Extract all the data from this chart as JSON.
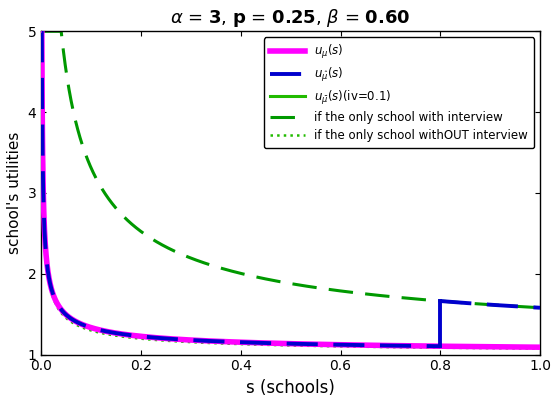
{
  "alpha": 3,
  "p": 0.25,
  "beta": 0.6,
  "iv": 0.1,
  "p_interview": 0.8,
  "xlabel": "s (schools)",
  "ylabel": "school's utilities",
  "ylim": [
    1,
    5
  ],
  "xlim": [
    0,
    1
  ],
  "magenta": "#FF00FF",
  "blue": "#0000CD",
  "green_solid": "#22BB00",
  "green_dashes": "#009900",
  "A_main": 0.092,
  "g_main": 0.56,
  "A_int": 0.58,
  "g_int": 0.6,
  "A_noiv": 0.075,
  "g_noiv": 0.6,
  "legend_labels": [
    "$u_{\\mu}(s)$",
    "$u_{\\hat{\\mu}}(s)$",
    "$u_{\\bar{\\mu}}(s)$(iv=0.1)",
    "if the only school with interview",
    "if the only school withOUT interview"
  ]
}
